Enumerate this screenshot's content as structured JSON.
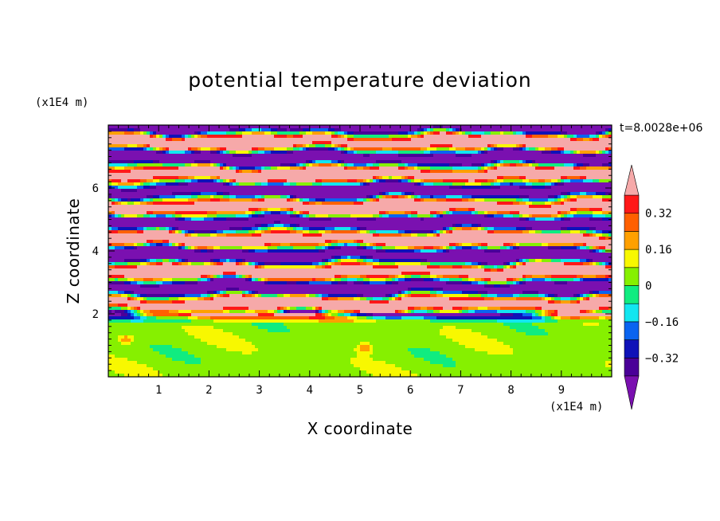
{
  "chart_data": {
    "type": "heatmap",
    "title": "potential temperature deviation",
    "xlabel": "X coordinate",
    "ylabel": "Z coordinate",
    "x_unit": "(x1E4 m)",
    "y_unit": "(x1E4 m)",
    "time_label": "t=8.0028e+06",
    "xlim": [
      0,
      10
    ],
    "ylim": [
      0,
      8
    ],
    "x_ticks": [
      "1",
      "2",
      "3",
      "4",
      "5",
      "6",
      "7",
      "8",
      "9"
    ],
    "y_ticks": [
      "2",
      "4",
      "6"
    ],
    "colorbar_levels": [
      -0.4,
      -0.32,
      -0.24,
      -0.16,
      -0.08,
      0,
      0.08,
      0.16,
      0.24,
      0.32,
      0.4
    ],
    "colorbar_labels": [
      "0.32",
      "0.16",
      "0",
      "−0.16",
      "−0.32"
    ],
    "colorbar_label_values": [
      0.32,
      0.16,
      0,
      -0.16,
      -0.32
    ],
    "colors": [
      "#7a10b0",
      "#4a0098",
      "#0f12b8",
      "#0a64f0",
      "#12e6f0",
      "#10ec80",
      "#86f000",
      "#f8f800",
      "#ffa000",
      "#ff6000",
      "#ff1818",
      "#f6a9a9"
    ],
    "grid": false,
    "legend_position": "right"
  }
}
